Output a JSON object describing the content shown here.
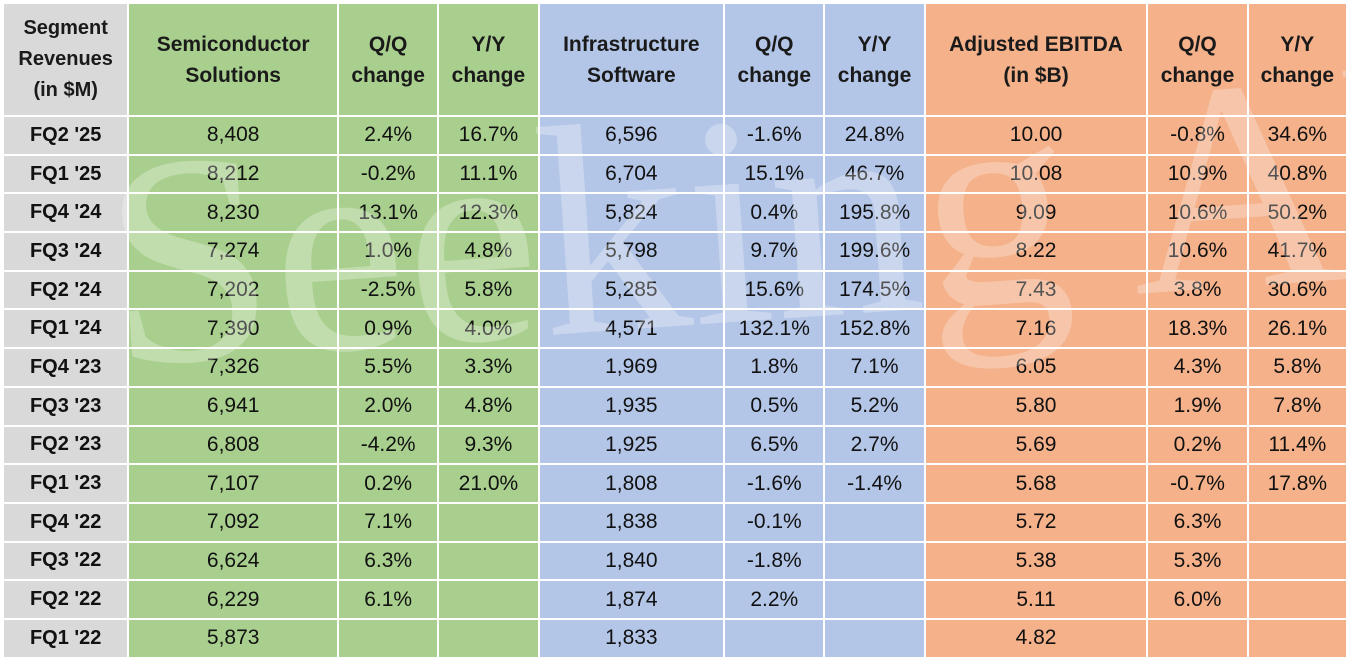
{
  "chart_data": {
    "type": "table",
    "header": {
      "segment": [
        "Segment",
        "Revenues",
        "(in $M)"
      ],
      "semi": [
        "Semiconductor",
        "Solutions"
      ],
      "qq": [
        "Q/Q",
        "change"
      ],
      "yy": [
        "Y/Y",
        "change"
      ],
      "infra": [
        "Infrastructure",
        "Software"
      ],
      "ebitda": [
        "Adjusted EBITDA",
        "(in $B)"
      ]
    },
    "rows": [
      [
        "FQ2 '25",
        "8,408",
        "2.4%",
        "16.7%",
        "6,596",
        "-1.6%",
        "24.8%",
        "10.00",
        "-0.8%",
        "34.6%"
      ],
      [
        "FQ1 '25",
        "8,212",
        "-0.2%",
        "11.1%",
        "6,704",
        "15.1%",
        "46.7%",
        "10.08",
        "10.9%",
        "40.8%"
      ],
      [
        "FQ4 '24",
        "8,230",
        "13.1%",
        "12.3%",
        "5,824",
        "0.4%",
        "195.8%",
        "9.09",
        "10.6%",
        "50.2%"
      ],
      [
        "FQ3 '24",
        "7,274",
        "1.0%",
        "4.8%",
        "5,798",
        "9.7%",
        "199.6%",
        "8.22",
        "10.6%",
        "41.7%"
      ],
      [
        "FQ2 '24",
        "7,202",
        "-2.5%",
        "5.8%",
        "5,285",
        "15.6%",
        "174.5%",
        "7.43",
        "3.8%",
        "30.6%"
      ],
      [
        "FQ1 '24",
        "7,390",
        "0.9%",
        "4.0%",
        "4,571",
        "132.1%",
        "152.8%",
        "7.16",
        "18.3%",
        "26.1%"
      ],
      [
        "FQ4 '23",
        "7,326",
        "5.5%",
        "3.3%",
        "1,969",
        "1.8%",
        "7.1%",
        "6.05",
        "4.3%",
        "5.8%"
      ],
      [
        "FQ3 '23",
        "6,941",
        "2.0%",
        "4.8%",
        "1,935",
        "0.5%",
        "5.2%",
        "5.80",
        "1.9%",
        "7.8%"
      ],
      [
        "FQ2 '23",
        "6,808",
        "-4.2%",
        "9.3%",
        "1,925",
        "6.5%",
        "2.7%",
        "5.69",
        "0.2%",
        "11.4%"
      ],
      [
        "FQ1 '23",
        "7,107",
        "0.2%",
        "21.0%",
        "1,808",
        "-1.6%",
        "-1.4%",
        "5.68",
        "-0.7%",
        "17.8%"
      ],
      [
        "FQ4 '22",
        "7,092",
        "7.1%",
        "",
        "1,838",
        "-0.1%",
        "",
        "5.72",
        "6.3%",
        ""
      ],
      [
        "FQ3 '22",
        "6,624",
        "6.3%",
        "",
        "1,840",
        "-1.8%",
        "",
        "5.38",
        "5.3%",
        ""
      ],
      [
        "FQ2 '22",
        "6,229",
        "6.1%",
        "",
        "1,874",
        "2.2%",
        "",
        "5.11",
        "6.0%",
        ""
      ],
      [
        "FQ1 '22",
        "5,873",
        "",
        "",
        "1,833",
        "",
        "",
        "4.82",
        "",
        ""
      ]
    ],
    "colors": {
      "quarter_col": "#d9d9d9",
      "semiconductor": "#a9cf8e",
      "infrastructure": "#b4c6e7",
      "ebitda": "#f4b18a"
    }
  },
  "watermark": "Seeking Alpha"
}
